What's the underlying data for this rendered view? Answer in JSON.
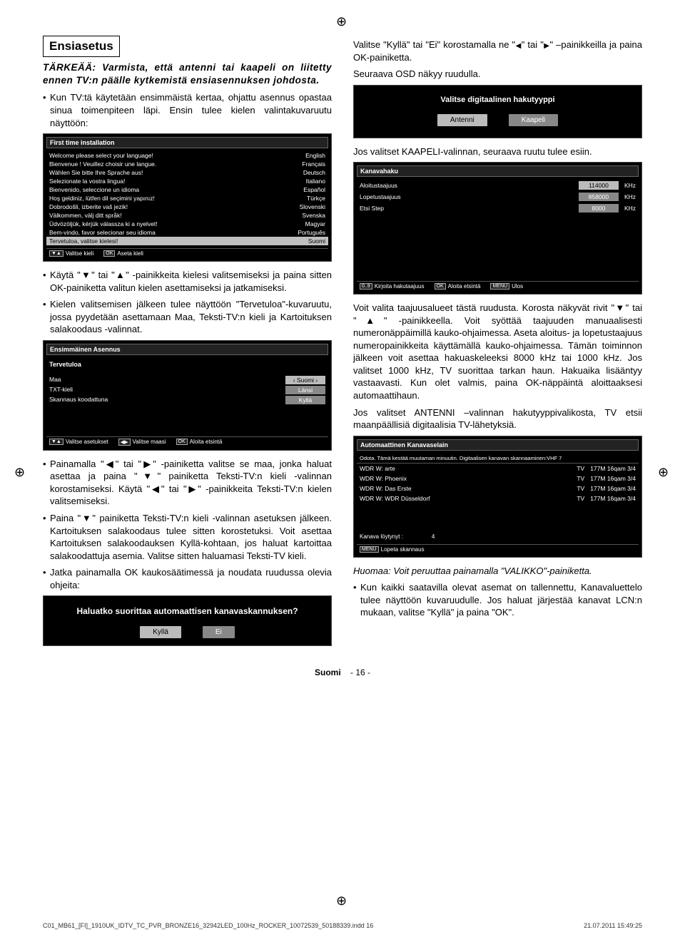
{
  "registration_glyph": "⊕",
  "heading": "Ensiasetus",
  "important": "TÄRKEÄÄ: Varmista, että antenni tai kaapeli on liitetty ennen TV:n päälle kytkemistä ensiasennuksen johdosta.",
  "left": {
    "b1": "Kun TV:tä käytetään ensimmäistä kertaa, ohjattu asennus opastaa sinua toimenpiteen läpi. Ensin tulee kielen valintakuvaruutu näyttöön:",
    "b2": "Käytä \"▼\" tai \"▲\" -painikkeita kielesi valitsemiseksi ja paina sitten OK-painiketta valitun kielen asettamiseksi ja jatkamiseksi.",
    "b3": "Kielen valitsemisen jälkeen tulee näyttöön \"Tervetuloa\"-kuvaruutu, jossa pyydetään asettamaan Maa, Teksti-TV:n kieli ja Kartoituksen salakoodaus -valinnat.",
    "b4": "Painamalla \"◀\" tai \"▶\" -painiketta valitse se maa, jonka haluat asettaa ja paina \"▼\" painiketta Teksti-TV:n kieli -valinnan korostamiseksi. Käytä \"◀\" tai \"▶\" -painikkeita Teksti-TV:n kielen valitsemiseksi.",
    "b5": "Paina \"▼\" painiketta Teksti-TV:n kieli -valinnan asetuksen jälkeen. Kartoituksen salakoodaus tulee sitten korostetuksi. Voit asettaa Kartoituksen salakoodauksen Kyllä-kohtaan, jos haluat kartoittaa salakoodattuja asemia. Valitse sitten haluamasi Teksti-TV kieli.",
    "b6": "Jatka painamalla OK kaukosäätimessä ja noudata ruudussa olevia ohjeita:"
  },
  "right": {
    "p1_a": "Valitse \"Kyllä\" tai \"Ei\" korostamalla ne \"",
    "p1_b": "\" tai \"",
    "p1_c": "\" –painikkeilla ja paina OK-painiketta.",
    "p2": "Seuraava OSD näkyy ruudulla.",
    "p3": "Jos valitset KAAPELI-valinnan, seuraava ruutu tulee esiin.",
    "p4": "Voit valita taajuusalueet tästä ruudusta. Korosta näkyvät rivit \"▼\" tai \"▲\" -painikkeella. Voit syöttää taajuuden manuaalisesti numeronäppäimillä kauko-ohjaimessa. Aseta aloitus- ja lopetustaajuus numeropainikkeita käyttämällä kauko-ohjaimessa. Tämän toiminnon jälkeen voit asettaa hakuaskeleeksi 8000 kHz tai 1000 kHz. Jos valitset 1000 kHz, TV suorittaa tarkan haun. Hakuaika lisääntyy vastaavasti. Kun olet valmis, paina OK-näppäintä aloittaaksesi automaattihaun.",
    "p5": "Jos valitset ANTENNI –valinnan hakutyyppivalikosta, TV etsii maanpäällisiä digitaalisia TV-lähetyksiä.",
    "note": "Huomaa: Voit peruuttaa painamalla \"VALIKKO\"-painiketta.",
    "b7": "Kun kaikki saatavilla olevat asemat on tallennettu, Kanavaluettelo tulee näyttöön kuvaruudulle. Jos haluat järjestää kanavat LCN:n mukaan, valitse \"Kyllä\" ja paina \"OK\"."
  },
  "osd_lang": {
    "title": "First time installation",
    "rows": [
      [
        "Welcome please select your language!",
        "English"
      ],
      [
        "Bienvenue ! Veuillez choisir une langue.",
        "Français"
      ],
      [
        "Wählen Sie bitte Ihre Sprache aus!",
        "Deutsch"
      ],
      [
        "Selezionate la vostra lingua!",
        "Italiano"
      ],
      [
        "Bienvenido, seleccione un idioma",
        "Español"
      ],
      [
        "Hoş geldiniz, lütfen dil seçimini yapınız!",
        "Türkçe"
      ],
      [
        "Dobrodošli, izberite vaš jezik!",
        "Slovenski"
      ],
      [
        "Välkommen, välj ditt språk!",
        "Svenska"
      ],
      [
        "Üdvözöljük, kérjük válassza ki a nyelvet!",
        "Magyar"
      ],
      [
        "Bem-vindo, favor selecionar seu idioma",
        "Português"
      ],
      [
        "Tervetuloa, valitse kielesi!",
        "Suomi"
      ]
    ],
    "footer": [
      "Valitse kieli",
      "Aseta kieli"
    ],
    "footer_keys": [
      "▼▲",
      "OK"
    ]
  },
  "osd_welcome": {
    "title": "Ensimmäinen Asennus",
    "subtitle": "Tervetuloa",
    "rows": [
      [
        "Maa",
        "‹   Suomi   ›"
      ],
      [
        "TXT-kieli",
        "Länsi"
      ],
      [
        "Skannaus koodattuna",
        "Kyllä"
      ]
    ],
    "footer": [
      "Valitse asetukset",
      "Valitse maasi",
      "Aloita etsintä"
    ],
    "footer_keys": [
      "▼▲",
      "◀▶",
      "OK"
    ]
  },
  "osd_scanq": {
    "question": "Haluatko suorittaa automaattisen kanavaskannuksen?",
    "yes": "Kyllä",
    "no": "Ei"
  },
  "osd_type": {
    "title": "Valitse digitaalinen hakutyyppi",
    "antenna": "Antenni",
    "cable": "Kaapeli"
  },
  "osd_freq": {
    "title": "Kanavahaku",
    "rows": [
      [
        "Aloitustaajuus",
        "114000",
        "KHz"
      ],
      [
        "Lopetustaajuus",
        "858000",
        "KHz"
      ],
      [
        "Etsi Step",
        "8000",
        "KHz"
      ]
    ],
    "footer": [
      "Kirjoita hakutaajuus",
      "Aloita etsintä",
      "Ulos"
    ],
    "footer_keys": [
      "0..9",
      "OK",
      "MENU"
    ]
  },
  "osd_auto": {
    "title": "Automaattinen Kanavaselain",
    "wait": "Odota. Tämä kestää muutaman minuutin.   Digitaalisen kanavan skannaaminen:VHF 7",
    "rows": [
      [
        "WDR W: arte",
        "TV",
        "177M 16qam 3/4"
      ],
      [
        "WDR W: Phoenix",
        "TV",
        "177M 16qam 3/4"
      ],
      [
        "WDR W: Das Erste",
        "TV",
        "177M 16qam 3/4"
      ],
      [
        "WDR W: WDR Düsseldorf",
        "TV",
        "177M 16qam 3/4"
      ]
    ],
    "found_label": "Kanava löytynyt :",
    "found_val": "4",
    "footer": "Lopeta skannaus",
    "footer_key": "MENU"
  },
  "footer": {
    "lang": "Suomi",
    "page": "- 16 -"
  },
  "print": {
    "file": "C01_MB61_[FI]_1910UK_IDTV_TC_PVR_BRONZE16_32942LED_100Hz_ROCKER_10072539_50188339.indd   16",
    "date": "21.07.2011   15:49:25"
  },
  "arrows": {
    "left": "◀",
    "right": "▶"
  }
}
